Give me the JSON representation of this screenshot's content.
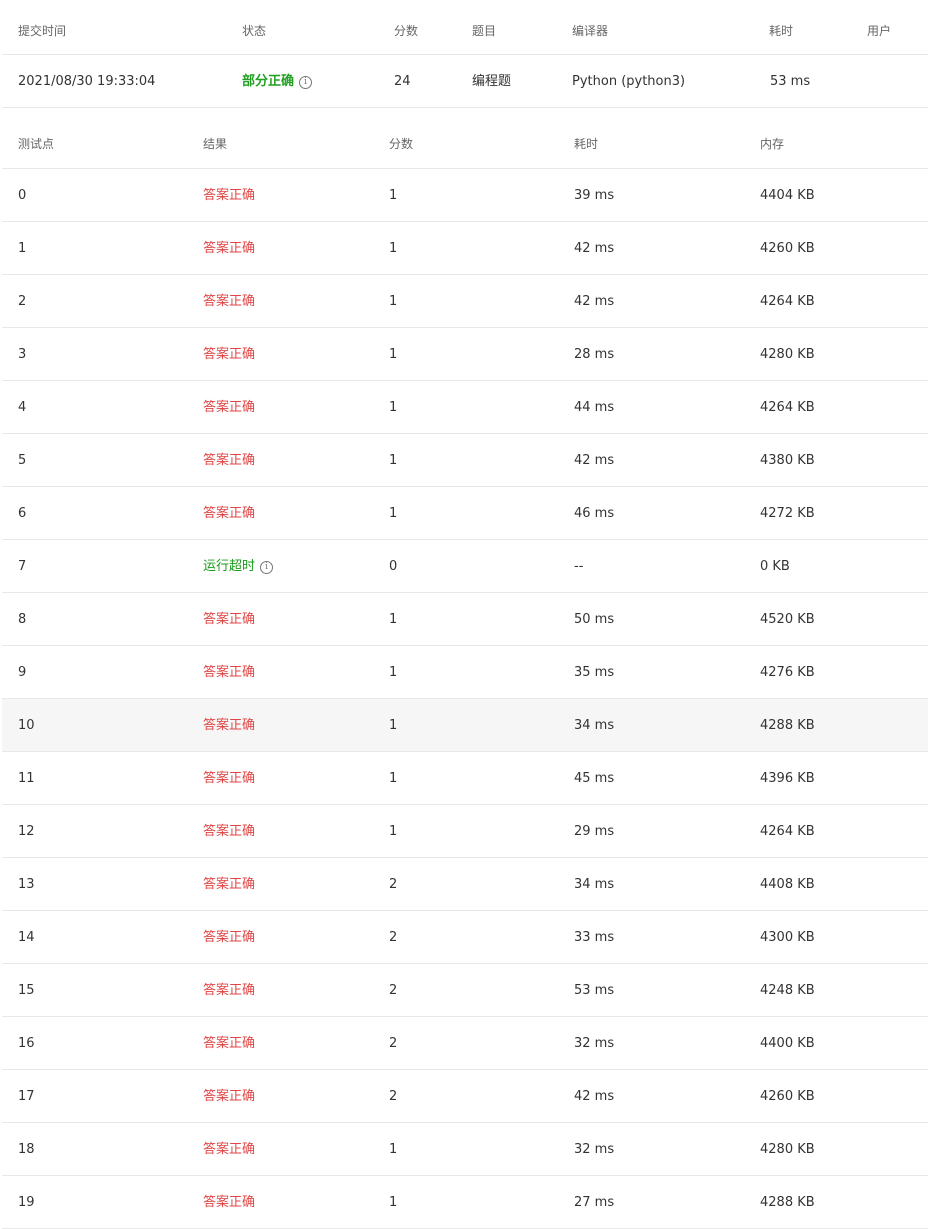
{
  "submission": {
    "headers": {
      "time": "提交时间",
      "status": "状态",
      "score": "分数",
      "problem": "题目",
      "compiler": "编译器",
      "duration": "耗时",
      "user": "用户"
    },
    "row": {
      "time": "2021/08/30 19:33:04",
      "status": "部分正确",
      "score": "24",
      "problem": "编程题",
      "compiler": "Python (python3)",
      "duration": "53 ms",
      "user": ""
    }
  },
  "testpoints": {
    "headers": {
      "id": "测试点",
      "result": "结果",
      "score": "分数",
      "time": "耗时",
      "memory": "内存"
    },
    "rows": [
      {
        "id": "0",
        "result": "答案正确",
        "score": "1",
        "time": "39 ms",
        "memory": "4404 KB"
      },
      {
        "id": "1",
        "result": "答案正确",
        "score": "1",
        "time": "42 ms",
        "memory": "4260 KB"
      },
      {
        "id": "2",
        "result": "答案正确",
        "score": "1",
        "time": "42 ms",
        "memory": "4264 KB"
      },
      {
        "id": "3",
        "result": "答案正确",
        "score": "1",
        "time": "28 ms",
        "memory": "4280 KB"
      },
      {
        "id": "4",
        "result": "答案正确",
        "score": "1",
        "time": "44 ms",
        "memory": "4264 KB"
      },
      {
        "id": "5",
        "result": "答案正确",
        "score": "1",
        "time": "42 ms",
        "memory": "4380 KB"
      },
      {
        "id": "6",
        "result": "答案正确",
        "score": "1",
        "time": "46 ms",
        "memory": "4272 KB"
      },
      {
        "id": "7",
        "result": "运行超时",
        "score": "0",
        "time": "--",
        "memory": "0 KB"
      },
      {
        "id": "8",
        "result": "答案正确",
        "score": "1",
        "time": "50 ms",
        "memory": "4520 KB"
      },
      {
        "id": "9",
        "result": "答案正确",
        "score": "1",
        "time": "35 ms",
        "memory": "4276 KB"
      },
      {
        "id": "10",
        "result": "答案正确",
        "score": "1",
        "time": "34 ms",
        "memory": "4288 KB"
      },
      {
        "id": "11",
        "result": "答案正确",
        "score": "1",
        "time": "45 ms",
        "memory": "4396 KB"
      },
      {
        "id": "12",
        "result": "答案正确",
        "score": "1",
        "time": "29 ms",
        "memory": "4264 KB"
      },
      {
        "id": "13",
        "result": "答案正确",
        "score": "2",
        "time": "34 ms",
        "memory": "4408 KB"
      },
      {
        "id": "14",
        "result": "答案正确",
        "score": "2",
        "time": "33 ms",
        "memory": "4300 KB"
      },
      {
        "id": "15",
        "result": "答案正确",
        "score": "2",
        "time": "53 ms",
        "memory": "4248 KB"
      },
      {
        "id": "16",
        "result": "答案正确",
        "score": "2",
        "time": "32 ms",
        "memory": "4400 KB"
      },
      {
        "id": "17",
        "result": "答案正确",
        "score": "2",
        "time": "42 ms",
        "memory": "4260 KB"
      },
      {
        "id": "18",
        "result": "答案正确",
        "score": "1",
        "time": "32 ms",
        "memory": "4280 KB"
      },
      {
        "id": "19",
        "result": "答案正确",
        "score": "1",
        "time": "27 ms",
        "memory": "4288 KB"
      }
    ]
  },
  "colors": {
    "accepted": "#e04545",
    "partial": "#22a022",
    "timeout": "#1a9a1a",
    "hover_row": "#f6f6f6"
  },
  "icons": {
    "status_info": "info-circle-icon",
    "result_info": "info-circle-icon"
  }
}
